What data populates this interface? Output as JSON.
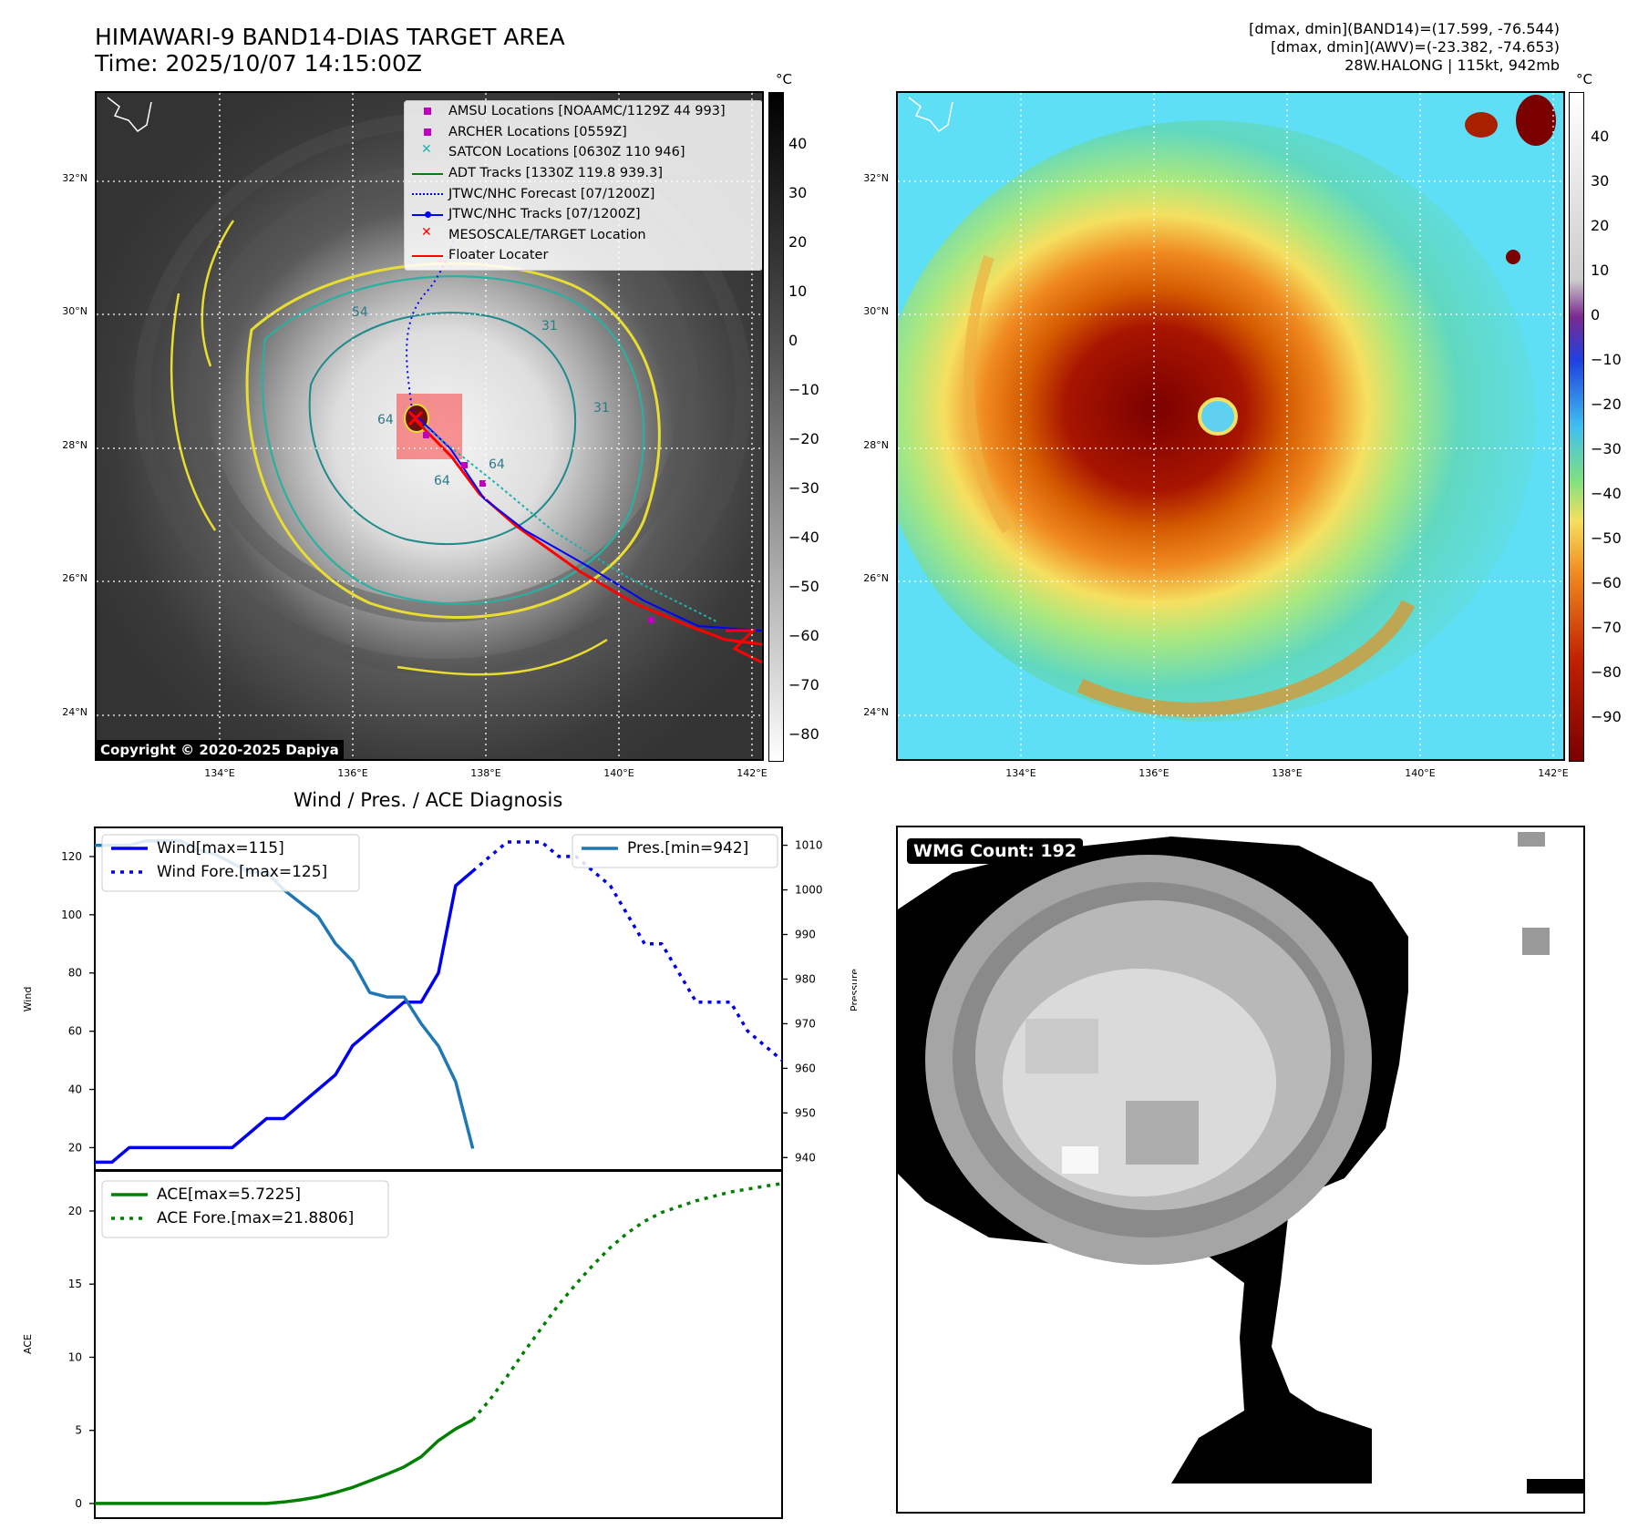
{
  "header": {
    "title_line1": "HIMAWARI-9 BAND14-DIAS TARGET AREA",
    "title_line2": "Time: 2025/10/07 14:15:00Z",
    "stats_line1": "[dmax, dmin](BAND14)=(17.599, -76.544)",
    "stats_line2": "[dmax, dmin](AWV)=(-23.382, -74.653)",
    "stats_line3": "28W.HALONG | 115kt, 942mb"
  },
  "maps": {
    "lat_labels": [
      "32°N",
      "30°N",
      "28°N",
      "26°N",
      "24°N"
    ],
    "lon_labels": [
      "134°E",
      "136°E",
      "138°E",
      "140°E",
      "142°E"
    ],
    "copyright": "Copyright © 2020-2025 Dapiya",
    "colorbar_unit": "°C",
    "left_colorbar_ticks": [
      "40",
      "30",
      "20",
      "10",
      "0",
      "−10",
      "−20",
      "−30",
      "−40",
      "−50",
      "−60",
      "−70",
      "−80"
    ],
    "right_colorbar_ticks": [
      "40",
      "30",
      "20",
      "10",
      "0",
      "−10",
      "−20",
      "−30",
      "−40",
      "−50",
      "−60",
      "−70",
      "−80",
      "−90"
    ],
    "contour_labels": [
      "64",
      "64",
      "64",
      "31",
      "31",
      "54"
    ],
    "legend": [
      {
        "label": "AMSU Locations [NOAAMC/1129Z 44 993]",
        "symbol": "square",
        "color": "#c000c0"
      },
      {
        "label": "ARCHER Locations [0559Z]",
        "symbol": "square",
        "color": "#c000c0"
      },
      {
        "label": "SATCON Locations [0630Z 110 946]",
        "symbol": "x",
        "color": "#20b0b0"
      },
      {
        "label": "ADT Tracks [1330Z 119.8 939.3]",
        "symbol": "line",
        "color": "#008000"
      },
      {
        "label": "JTWC/NHC Forecast [07/1200Z]",
        "symbol": "dotted",
        "color": "#0000ff"
      },
      {
        "label": "JTWC/NHC Tracks [07/1200Z]",
        "symbol": "line-dot",
        "color": "#0000ff"
      },
      {
        "label": "MESOSCALE/TARGET Location",
        "symbol": "x",
        "color": "#ff0000"
      },
      {
        "label": "Floater Locater",
        "symbol": "line",
        "color": "#ff0000"
      }
    ]
  },
  "wmg": {
    "label": "WMG Count: 192"
  },
  "chart_data": [
    {
      "type": "line",
      "title": "Wind / Pres. / ACE Diagnosis",
      "ylabel": "Wind",
      "y2label": "Pressure",
      "ylim": [
        12,
        130
      ],
      "y2lim": [
        937,
        1014
      ],
      "xlim": [
        0,
        40
      ],
      "y_ticks": [
        "20",
        "40",
        "60",
        "80",
        "100",
        "120"
      ],
      "y2_ticks": [
        "940",
        "950",
        "960",
        "970",
        "980",
        "990",
        "1000",
        "1010"
      ],
      "series": [
        {
          "name": "Wind[max=115]",
          "color": "#0000ee",
          "style": "solid",
          "axis": "left",
          "x": [
            0,
            1,
            2,
            3,
            4,
            5,
            6,
            7,
            8,
            9,
            10,
            11,
            12,
            13,
            14,
            15,
            16,
            17,
            18,
            19,
            20,
            21,
            22
          ],
          "values": [
            15,
            15,
            20,
            20,
            20,
            20,
            20,
            20,
            20,
            25,
            30,
            30,
            35,
            40,
            45,
            55,
            60,
            65,
            70,
            70,
            80,
            110,
            115
          ]
        },
        {
          "name": "Wind Fore.[max=125]",
          "color": "#0000ee",
          "style": "dotted",
          "axis": "left",
          "x": [
            22,
            23,
            24,
            25,
            26,
            27,
            28,
            29,
            30,
            31,
            32,
            33,
            34,
            35,
            36,
            37,
            38,
            39,
            40
          ],
          "values": [
            115,
            120,
            125,
            125,
            125,
            120,
            120,
            115,
            110,
            100,
            90,
            90,
            80,
            70,
            70,
            70,
            60,
            55,
            50
          ]
        },
        {
          "name": "Pres.[min=942]",
          "color": "#1f77b4",
          "style": "solid",
          "axis": "right",
          "x": [
            0,
            1,
            2,
            3,
            4,
            5,
            6,
            7,
            8,
            9,
            10,
            11,
            12,
            13,
            14,
            15,
            16,
            17,
            18,
            19,
            20,
            21,
            22
          ],
          "values": [
            1010,
            1010,
            1010,
            1011,
            1011,
            1011,
            1009,
            1008,
            1006,
            1004,
            1004,
            1000,
            997,
            994,
            988,
            984,
            977,
            976,
            976,
            970,
            965,
            957,
            942
          ]
        }
      ]
    },
    {
      "type": "line",
      "ylabel": "ACE",
      "ylim": [
        -1,
        22.8
      ],
      "xlim": [
        0,
        40
      ],
      "y_ticks": [
        "0",
        "5",
        "10",
        "15",
        "20"
      ],
      "series": [
        {
          "name": "ACE[max=5.7225]",
          "color": "#008000",
          "style": "solid",
          "x": [
            0,
            1,
            2,
            3,
            4,
            5,
            6,
            7,
            8,
            9,
            10,
            11,
            12,
            13,
            14,
            15,
            16,
            17,
            18,
            19,
            20,
            21,
            22
          ],
          "values": [
            0,
            0,
            0,
            0,
            0,
            0,
            0,
            0,
            0,
            0,
            0,
            0.1,
            0.25,
            0.45,
            0.75,
            1.1,
            1.55,
            2.0,
            2.5,
            3.2,
            4.3,
            5.1,
            5.7225
          ]
        },
        {
          "name": "ACE Fore.[max=21.8806]",
          "color": "#008000",
          "style": "dotted",
          "x": [
            22,
            23,
            24,
            25,
            26,
            27,
            28,
            29,
            30,
            31,
            32,
            33,
            34,
            35,
            36,
            37,
            38,
            39,
            40
          ],
          "values": [
            5.7225,
            7.1,
            8.7,
            10.4,
            12.0,
            13.6,
            15.0,
            16.3,
            17.5,
            18.5,
            19.3,
            19.9,
            20.3,
            20.7,
            21.0,
            21.3,
            21.5,
            21.7,
            21.8806
          ]
        }
      ]
    }
  ]
}
